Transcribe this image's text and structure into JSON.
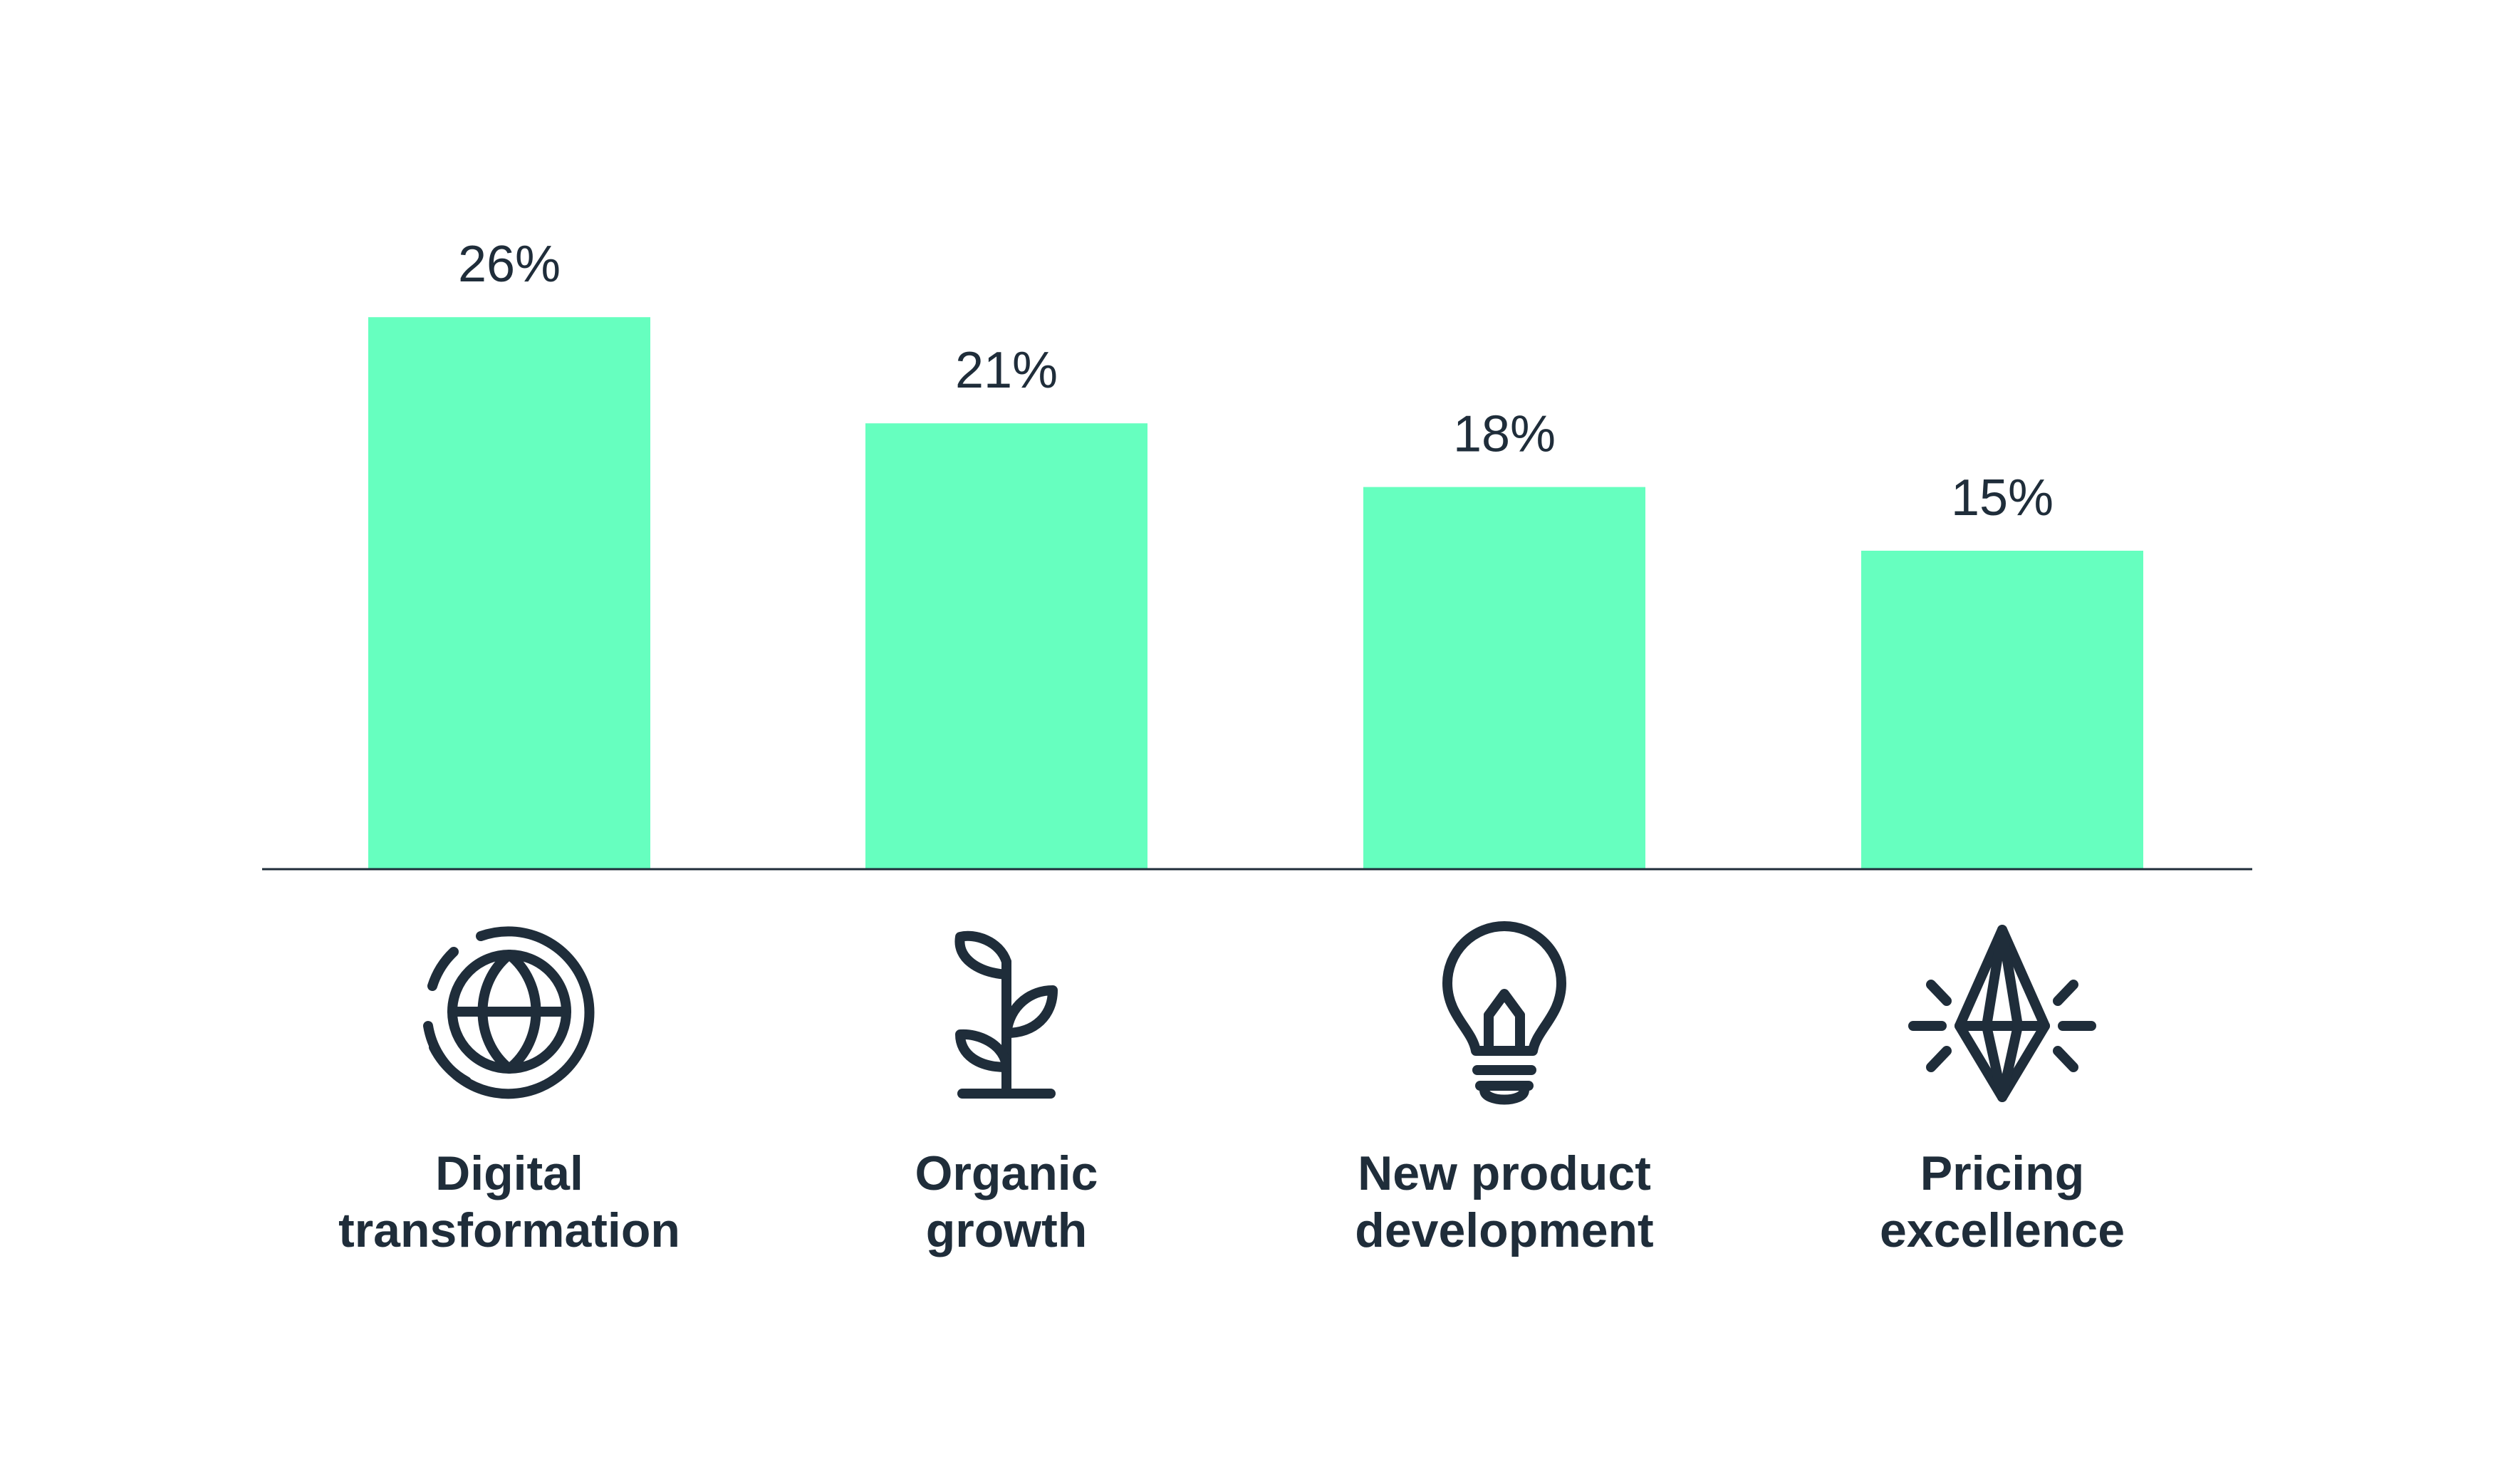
{
  "chart_data": {
    "type": "bar",
    "categories": [
      [
        "Digital",
        "transformation"
      ],
      [
        "Organic",
        "growth"
      ],
      [
        "New product",
        "development"
      ],
      [
        "Pricing",
        "excellence"
      ]
    ],
    "values": [
      26,
      21,
      18,
      15
    ],
    "value_labels": [
      "26%",
      "21%",
      "18%",
      "15%"
    ],
    "icons": [
      "globe-icon",
      "plant-sprout-icon",
      "lightbulb-icon",
      "diamond-icon"
    ],
    "ylim": [
      0,
      30
    ],
    "grid": false,
    "legend": "none",
    "title": "",
    "xlabel": "",
    "ylabel": ""
  },
  "colors": {
    "bar": "#66ffbf",
    "text": "#1f2d3a",
    "axis": "#1f2d3a",
    "background": "#ffffff"
  }
}
